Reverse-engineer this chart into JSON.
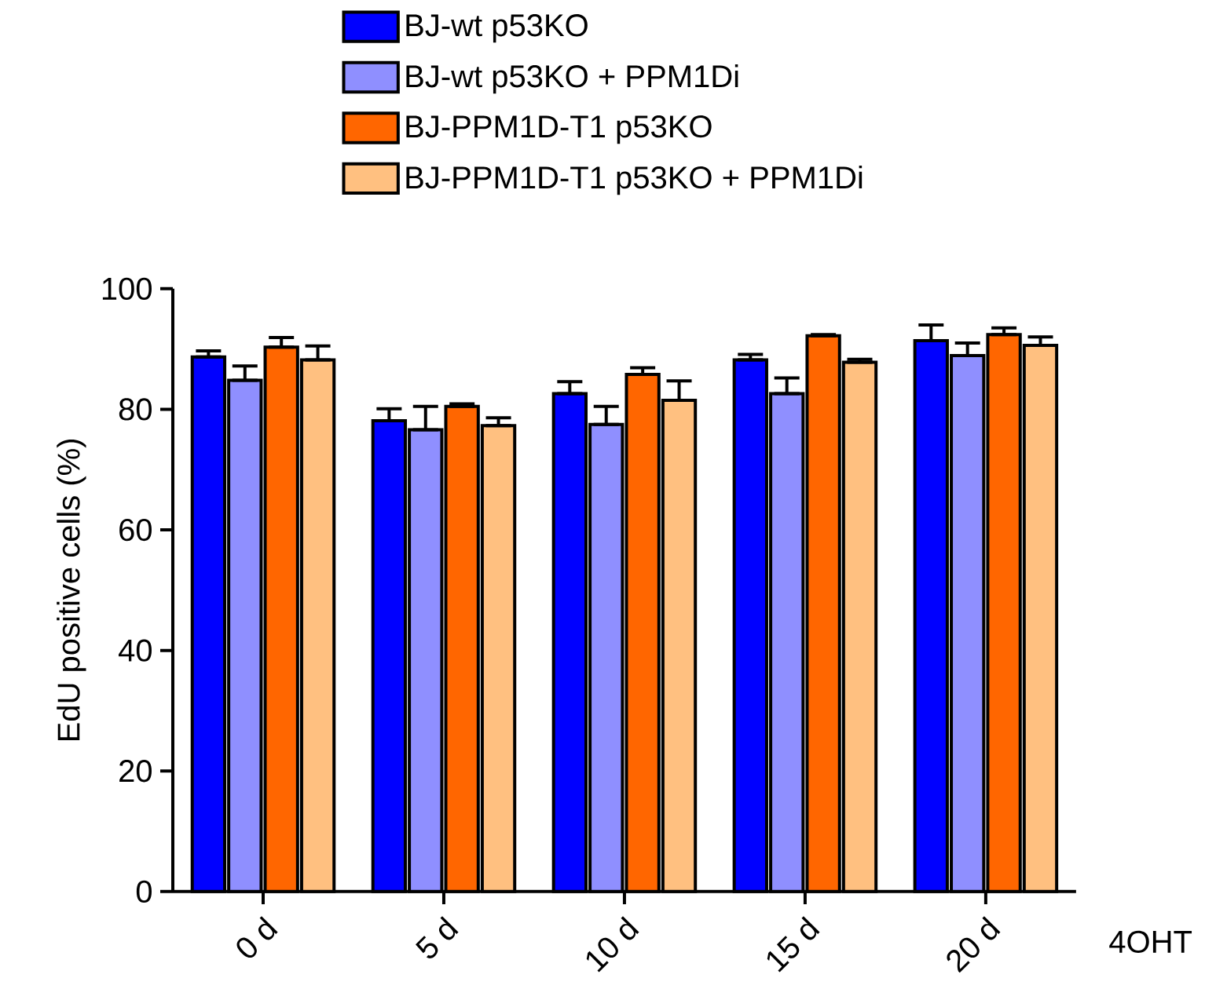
{
  "chart_data": {
    "type": "bar",
    "xlabel": "4OHT",
    "ylabel": "EdU positive cells (%)",
    "categories": [
      "0 d",
      "5 d",
      "10 d",
      "15 d",
      "20 d"
    ],
    "ylim": [
      0,
      100
    ],
    "yticks": [
      0,
      20,
      40,
      60,
      80,
      100
    ],
    "legend": "top",
    "series": [
      {
        "name": "BJ-wt p53KO",
        "color": "#0000ff",
        "values": [
          88.7,
          78.1,
          82.6,
          88.2,
          91.4
        ],
        "errors": [
          [
            88.7,
            89.7
          ],
          [
            78.1,
            80.1
          ],
          [
            82.6,
            84.6
          ],
          [
            88.2,
            89.1
          ],
          [
            91.4,
            94.0
          ]
        ]
      },
      {
        "name": "BJ-wt p53KO + PPM1Di",
        "color": "#8f8fff",
        "values": [
          84.8,
          76.6,
          77.5,
          82.6,
          88.9
        ],
        "errors": [
          [
            84.8,
            87.2
          ],
          [
            76.6,
            80.5
          ],
          [
            77.5,
            80.5
          ],
          [
            82.6,
            85.2
          ],
          [
            88.9,
            91.0
          ]
        ]
      },
      {
        "name": "BJ-PPM1D-T1 p53KO",
        "color": "#ff6600",
        "values": [
          90.3,
          80.5,
          85.8,
          92.2,
          92.4
        ],
        "errors": [
          [
            90.3,
            91.9
          ],
          [
            80.5,
            80.9
          ],
          [
            85.8,
            86.9
          ],
          [
            92.2,
            92.4
          ],
          [
            92.4,
            93.5
          ]
        ]
      },
      {
        "name": "BJ-PPM1D-T1 p53KO + PPM1Di",
        "color": "#ffc080",
        "values": [
          88.2,
          77.3,
          81.5,
          87.8,
          90.6
        ],
        "errors": [
          [
            88.2,
            90.5
          ],
          [
            77.3,
            78.6
          ],
          [
            81.5,
            84.7
          ],
          [
            87.8,
            88.3
          ],
          [
            90.6,
            92.0
          ]
        ]
      }
    ]
  }
}
